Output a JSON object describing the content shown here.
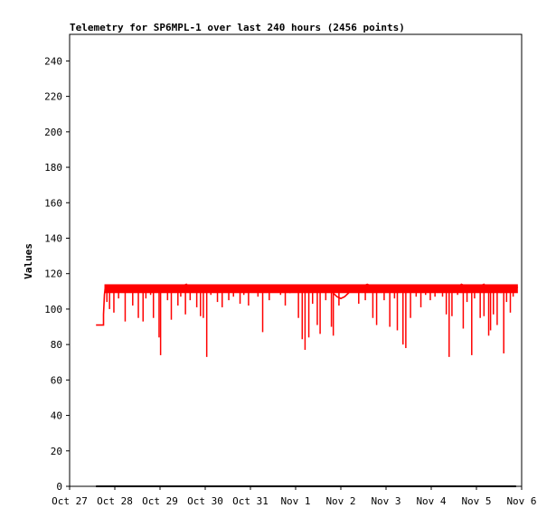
{
  "chart_data": {
    "type": "line",
    "title": "Telemetry for SP6MPL-1 over last 240 hours (2456 points)",
    "xlabel": "",
    "ylabel": "Values",
    "xlim": [
      0,
      240
    ],
    "ylim": [
      0,
      255
    ],
    "x_ticks": [
      {
        "label": "Oct 27",
        "value": 0
      },
      {
        "label": "Oct 28",
        "value": 24
      },
      {
        "label": "Oct 29",
        "value": 48
      },
      {
        "label": "Oct 30",
        "value": 72
      },
      {
        "label": "Oct 31",
        "value": 96
      },
      {
        "label": "Nov 1",
        "value": 120
      },
      {
        "label": "Nov 2",
        "value": 144
      },
      {
        "label": "Nov 3",
        "value": 168
      },
      {
        "label": "Nov 4",
        "value": 192
      },
      {
        "label": "Nov 5",
        "value": 216
      },
      {
        "label": "Nov 6",
        "value": 240
      }
    ],
    "y_ticks": [
      0,
      20,
      40,
      60,
      80,
      100,
      120,
      140,
      160,
      180,
      200,
      220,
      240
    ],
    "grid": false,
    "series": [
      {
        "color": "#ff0000",
        "baseline_range": [
          109,
          114
        ],
        "x": [
          14,
          18,
          18,
          18.5,
          19,
          20,
          20.5,
          21,
          22,
          23,
          24,
          25,
          26,
          27,
          28,
          29,
          30,
          31,
          32,
          34,
          36,
          38,
          40,
          42,
          44,
          46,
          48,
          50,
          52,
          54,
          56,
          58,
          60,
          62,
          64,
          66,
          68,
          70,
          72,
          74,
          76,
          78,
          80,
          82,
          84,
          86,
          88,
          90,
          92,
          94,
          96,
          98,
          100,
          102,
          104,
          106,
          108,
          110,
          112,
          114,
          116,
          118,
          120,
          122,
          124,
          126,
          128,
          130,
          132,
          134,
          136,
          138,
          140,
          142,
          144,
          146,
          148,
          150,
          152,
          154,
          156,
          158,
          160,
          162,
          164,
          166,
          168,
          170,
          172,
          174,
          176,
          178,
          180,
          182,
          184,
          186,
          188,
          190,
          192,
          194,
          196,
          198,
          200,
          202,
          204,
          206,
          208,
          210,
          212,
          214,
          216,
          218,
          220,
          222,
          224,
          226,
          228,
          230,
          232,
          234,
          236,
          238
        ],
        "y": [
          91,
          91,
          97,
          108,
          113,
          112,
          112,
          111,
          113,
          112,
          111,
          112,
          113,
          112,
          112,
          111,
          112,
          113,
          112,
          111,
          112,
          113,
          113,
          111,
          112,
          113,
          112,
          111,
          112,
          113,
          112,
          112,
          113,
          114,
          112,
          111,
          112,
          113,
          111,
          112,
          112,
          113,
          112,
          111,
          112,
          113,
          112,
          112,
          111,
          112,
          113,
          112,
          111,
          112,
          113,
          112,
          111,
          112,
          113,
          112,
          111,
          112,
          112,
          113,
          111,
          112,
          113,
          112,
          111,
          112,
          113,
          112,
          109,
          107,
          106,
          107,
          109,
          112,
          113,
          112,
          113,
          114,
          113,
          112,
          112,
          111,
          113,
          112,
          111,
          112,
          112,
          113,
          112,
          111,
          112,
          112,
          113,
          112,
          111,
          112,
          113,
          112,
          111,
          112,
          113,
          112,
          114,
          113,
          112,
          113,
          112,
          113,
          114,
          112,
          111,
          112,
          113,
          112,
          111,
          112,
          113,
          112
        ],
        "dips": [
          {
            "x": 19.8,
            "y": 104
          },
          {
            "x": 21.2,
            "y": 100
          },
          {
            "x": 23.5,
            "y": 98
          },
          {
            "x": 26,
            "y": 106
          },
          {
            "x": 29.5,
            "y": 93
          },
          {
            "x": 33.5,
            "y": 102
          },
          {
            "x": 36.5,
            "y": 95
          },
          {
            "x": 39,
            "y": 93
          },
          {
            "x": 40.5,
            "y": 106
          },
          {
            "x": 43,
            "y": 108
          },
          {
            "x": 44.5,
            "y": 95
          },
          {
            "x": 47.5,
            "y": 84
          },
          {
            "x": 48.3,
            "y": 74
          },
          {
            "x": 52,
            "y": 105
          },
          {
            "x": 54,
            "y": 94
          },
          {
            "x": 57.5,
            "y": 102
          },
          {
            "x": 59,
            "y": 107
          },
          {
            "x": 61.5,
            "y": 97
          },
          {
            "x": 64,
            "y": 105
          },
          {
            "x": 67.5,
            "y": 101
          },
          {
            "x": 69.5,
            "y": 96
          },
          {
            "x": 71,
            "y": 95
          },
          {
            "x": 72.8,
            "y": 73
          },
          {
            "x": 75,
            "y": 108
          },
          {
            "x": 78.5,
            "y": 104
          },
          {
            "x": 81,
            "y": 101
          },
          {
            "x": 84.5,
            "y": 105
          },
          {
            "x": 87,
            "y": 107
          },
          {
            "x": 90.5,
            "y": 103
          },
          {
            "x": 92.5,
            "y": 108
          },
          {
            "x": 95,
            "y": 102
          },
          {
            "x": 100,
            "y": 107
          },
          {
            "x": 102.5,
            "y": 87
          },
          {
            "x": 106,
            "y": 105
          },
          {
            "x": 112,
            "y": 108
          },
          {
            "x": 114.5,
            "y": 102
          },
          {
            "x": 117,
            "y": 109
          },
          {
            "x": 121.5,
            "y": 95
          },
          {
            "x": 123.5,
            "y": 83
          },
          {
            "x": 125,
            "y": 77
          },
          {
            "x": 127,
            "y": 84
          },
          {
            "x": 129,
            "y": 103
          },
          {
            "x": 131.5,
            "y": 91
          },
          {
            "x": 133,
            "y": 86
          },
          {
            "x": 136,
            "y": 105
          },
          {
            "x": 139,
            "y": 90
          },
          {
            "x": 140,
            "y": 85
          },
          {
            "x": 143,
            "y": 102
          },
          {
            "x": 153.5,
            "y": 103
          },
          {
            "x": 157,
            "y": 105
          },
          {
            "x": 161,
            "y": 95
          },
          {
            "x": 163,
            "y": 91
          },
          {
            "x": 167,
            "y": 105
          },
          {
            "x": 170,
            "y": 90
          },
          {
            "x": 172.5,
            "y": 106
          },
          {
            "x": 174,
            "y": 88
          },
          {
            "x": 177,
            "y": 80
          },
          {
            "x": 178.5,
            "y": 78
          },
          {
            "x": 181,
            "y": 95
          },
          {
            "x": 184,
            "y": 107
          },
          {
            "x": 186.5,
            "y": 101
          },
          {
            "x": 189,
            "y": 108
          },
          {
            "x": 191.5,
            "y": 105
          },
          {
            "x": 194,
            "y": 107
          },
          {
            "x": 198,
            "y": 107
          },
          {
            "x": 200,
            "y": 97
          },
          {
            "x": 201.5,
            "y": 73
          },
          {
            "x": 203,
            "y": 96
          },
          {
            "x": 206,
            "y": 108
          },
          {
            "x": 209,
            "y": 89
          },
          {
            "x": 211,
            "y": 104
          },
          {
            "x": 213.5,
            "y": 74
          },
          {
            "x": 215,
            "y": 106
          },
          {
            "x": 218,
            "y": 95
          },
          {
            "x": 220,
            "y": 96
          },
          {
            "x": 222.5,
            "y": 85
          },
          {
            "x": 223.5,
            "y": 88
          },
          {
            "x": 225,
            "y": 97
          },
          {
            "x": 227,
            "y": 91
          },
          {
            "x": 229,
            "y": 109
          },
          {
            "x": 230.5,
            "y": 75
          },
          {
            "x": 232,
            "y": 104
          },
          {
            "x": 234,
            "y": 98
          },
          {
            "x": 235.5,
            "y": 107
          }
        ]
      },
      {
        "color": "#000000",
        "x": [
          14,
          237
        ],
        "y": [
          0,
          0
        ]
      }
    ]
  }
}
